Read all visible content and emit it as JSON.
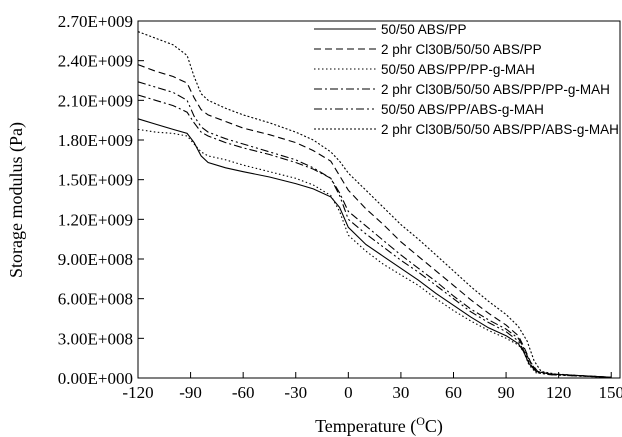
{
  "chart_data": {
    "type": "line",
    "title": "",
    "xlabel": "Temperature (",
    "xlabel_sup": "O",
    "xlabel_unit": "C)",
    "ylabel": "Storage modulus (Pa)",
    "xlim": [
      -120,
      155
    ],
    "ylim": [
      0,
      2700000000
    ],
    "xticks": [
      -120,
      -90,
      -60,
      -30,
      0,
      30,
      60,
      90,
      120,
      150
    ],
    "xtick_labels": [
      "-120",
      "-90",
      "-60",
      "-30",
      "0",
      "30",
      "60",
      "90",
      "120",
      "150"
    ],
    "yticks": [
      0,
      300000000,
      600000000,
      900000000,
      1200000000,
      1500000000,
      1800000000,
      2100000000,
      2400000000,
      2700000000
    ],
    "ytick_labels": [
      "0.00E+000",
      "3.00E+008",
      "6.00E+008",
      "9.00E+008",
      "1.20E+009",
      "1.50E+009",
      "1.80E+009",
      "2.10E+009",
      "2.40E+009",
      "2.70E+009"
    ],
    "grid": false,
    "legend_position": "top-right",
    "series": [
      {
        "name": "50/50 ABS/PP",
        "style": "solid",
        "color": "#000000",
        "points": [
          [
            -120,
            1960000000
          ],
          [
            -110,
            1920000000
          ],
          [
            -100,
            1880000000
          ],
          [
            -92,
            1850000000
          ],
          [
            -88,
            1780000000
          ],
          [
            -84,
            1680000000
          ],
          [
            -80,
            1630000000
          ],
          [
            -70,
            1590000000
          ],
          [
            -60,
            1560000000
          ],
          [
            -45,
            1520000000
          ],
          [
            -30,
            1470000000
          ],
          [
            -20,
            1430000000
          ],
          [
            -10,
            1370000000
          ],
          [
            -5,
            1290000000
          ],
          [
            0,
            1140000000
          ],
          [
            10,
            1010000000
          ],
          [
            20,
            920000000
          ],
          [
            30,
            830000000
          ],
          [
            40,
            740000000
          ],
          [
            50,
            640000000
          ],
          [
            60,
            550000000
          ],
          [
            70,
            460000000
          ],
          [
            80,
            380000000
          ],
          [
            90,
            320000000
          ],
          [
            97,
            260000000
          ],
          [
            100,
            200000000
          ],
          [
            103,
            110000000
          ],
          [
            107,
            50000000
          ],
          [
            115,
            30000000
          ],
          [
            130,
            20000000
          ],
          [
            150,
            5000000
          ]
        ]
      },
      {
        "name": "2 phr Cl30B/50/50 ABS/PP",
        "style": "dashed",
        "color": "#000000",
        "points": [
          [
            -120,
            2370000000
          ],
          [
            -110,
            2320000000
          ],
          [
            -100,
            2280000000
          ],
          [
            -92,
            2230000000
          ],
          [
            -88,
            2120000000
          ],
          [
            -84,
            2030000000
          ],
          [
            -80,
            1990000000
          ],
          [
            -70,
            1940000000
          ],
          [
            -60,
            1890000000
          ],
          [
            -45,
            1840000000
          ],
          [
            -30,
            1780000000
          ],
          [
            -20,
            1720000000
          ],
          [
            -10,
            1640000000
          ],
          [
            -5,
            1530000000
          ],
          [
            0,
            1420000000
          ],
          [
            10,
            1280000000
          ],
          [
            20,
            1160000000
          ],
          [
            30,
            1030000000
          ],
          [
            40,
            920000000
          ],
          [
            50,
            810000000
          ],
          [
            60,
            700000000
          ],
          [
            70,
            590000000
          ],
          [
            80,
            490000000
          ],
          [
            90,
            400000000
          ],
          [
            97,
            320000000
          ],
          [
            100,
            240000000
          ],
          [
            104,
            120000000
          ],
          [
            108,
            50000000
          ],
          [
            115,
            30000000
          ],
          [
            130,
            20000000
          ],
          [
            150,
            5000000
          ]
        ]
      },
      {
        "name": "50/50 ABS/PP/PP-g-MAH",
        "style": "dotted",
        "color": "#000000",
        "points": [
          [
            -120,
            1880000000
          ],
          [
            -110,
            1860000000
          ],
          [
            -100,
            1850000000
          ],
          [
            -92,
            1830000000
          ],
          [
            -88,
            1770000000
          ],
          [
            -84,
            1710000000
          ],
          [
            -80,
            1680000000
          ],
          [
            -70,
            1650000000
          ],
          [
            -60,
            1610000000
          ],
          [
            -45,
            1560000000
          ],
          [
            -30,
            1510000000
          ],
          [
            -20,
            1460000000
          ],
          [
            -10,
            1380000000
          ],
          [
            -5,
            1260000000
          ],
          [
            0,
            1080000000
          ],
          [
            10,
            960000000
          ],
          [
            20,
            860000000
          ],
          [
            30,
            780000000
          ],
          [
            40,
            700000000
          ],
          [
            50,
            600000000
          ],
          [
            60,
            510000000
          ],
          [
            70,
            430000000
          ],
          [
            80,
            360000000
          ],
          [
            90,
            300000000
          ],
          [
            97,
            250000000
          ],
          [
            100,
            200000000
          ],
          [
            103,
            100000000
          ],
          [
            107,
            40000000
          ],
          [
            115,
            25000000
          ],
          [
            130,
            15000000
          ],
          [
            150,
            5000000
          ]
        ]
      },
      {
        "name": "2 phr Cl30B/50/50 ABS/PP/PP-g-MAH",
        "style": "dashdot",
        "color": "#000000",
        "points": [
          [
            -120,
            2140000000
          ],
          [
            -110,
            2100000000
          ],
          [
            -100,
            2060000000
          ],
          [
            -92,
            2010000000
          ],
          [
            -88,
            1930000000
          ],
          [
            -84,
            1860000000
          ],
          [
            -80,
            1830000000
          ],
          [
            -70,
            1780000000
          ],
          [
            -60,
            1740000000
          ],
          [
            -45,
            1690000000
          ],
          [
            -30,
            1630000000
          ],
          [
            -20,
            1580000000
          ],
          [
            -10,
            1510000000
          ],
          [
            -5,
            1400000000
          ],
          [
            0,
            1260000000
          ],
          [
            10,
            1150000000
          ],
          [
            20,
            1040000000
          ],
          [
            30,
            930000000
          ],
          [
            40,
            830000000
          ],
          [
            50,
            730000000
          ],
          [
            60,
            620000000
          ],
          [
            70,
            520000000
          ],
          [
            80,
            440000000
          ],
          [
            90,
            370000000
          ],
          [
            97,
            300000000
          ],
          [
            100,
            230000000
          ],
          [
            104,
            110000000
          ],
          [
            108,
            50000000
          ],
          [
            115,
            30000000
          ],
          [
            130,
            20000000
          ],
          [
            150,
            5000000
          ]
        ]
      },
      {
        "name": "50/50 ABS/PP/ABS-g-MAH",
        "style": "dashdotdot",
        "color": "#000000",
        "points": [
          [
            -120,
            2240000000
          ],
          [
            -110,
            2200000000
          ],
          [
            -100,
            2160000000
          ],
          [
            -92,
            2100000000
          ],
          [
            -88,
            1980000000
          ],
          [
            -84,
            1900000000
          ],
          [
            -80,
            1860000000
          ],
          [
            -70,
            1810000000
          ],
          [
            -60,
            1770000000
          ],
          [
            -45,
            1710000000
          ],
          [
            -30,
            1650000000
          ],
          [
            -20,
            1590000000
          ],
          [
            -10,
            1510000000
          ],
          [
            -5,
            1380000000
          ],
          [
            0,
            1200000000
          ],
          [
            10,
            1090000000
          ],
          [
            20,
            990000000
          ],
          [
            30,
            890000000
          ],
          [
            40,
            800000000
          ],
          [
            50,
            700000000
          ],
          [
            60,
            600000000
          ],
          [
            70,
            500000000
          ],
          [
            80,
            420000000
          ],
          [
            90,
            350000000
          ],
          [
            97,
            280000000
          ],
          [
            100,
            210000000
          ],
          [
            104,
            100000000
          ],
          [
            108,
            40000000
          ],
          [
            115,
            25000000
          ],
          [
            130,
            15000000
          ],
          [
            150,
            5000000
          ]
        ]
      },
      {
        "name": "2 phr Cl30B/50/50 ABS/PP/ABS-g-MAH",
        "style": "shortdot",
        "color": "#000000",
        "points": [
          [
            -120,
            2620000000
          ],
          [
            -110,
            2570000000
          ],
          [
            -100,
            2520000000
          ],
          [
            -92,
            2440000000
          ],
          [
            -88,
            2280000000
          ],
          [
            -84,
            2150000000
          ],
          [
            -80,
            2100000000
          ],
          [
            -70,
            2040000000
          ],
          [
            -60,
            1990000000
          ],
          [
            -45,
            1930000000
          ],
          [
            -30,
            1860000000
          ],
          [
            -20,
            1800000000
          ],
          [
            -10,
            1710000000
          ],
          [
            -5,
            1640000000
          ],
          [
            0,
            1550000000
          ],
          [
            10,
            1420000000
          ],
          [
            20,
            1290000000
          ],
          [
            30,
            1160000000
          ],
          [
            40,
            1050000000
          ],
          [
            50,
            930000000
          ],
          [
            60,
            810000000
          ],
          [
            70,
            690000000
          ],
          [
            80,
            580000000
          ],
          [
            90,
            480000000
          ],
          [
            97,
            390000000
          ],
          [
            102,
            280000000
          ],
          [
            106,
            130000000
          ],
          [
            110,
            50000000
          ],
          [
            118,
            30000000
          ],
          [
            130,
            20000000
          ],
          [
            150,
            5000000
          ]
        ]
      }
    ]
  }
}
